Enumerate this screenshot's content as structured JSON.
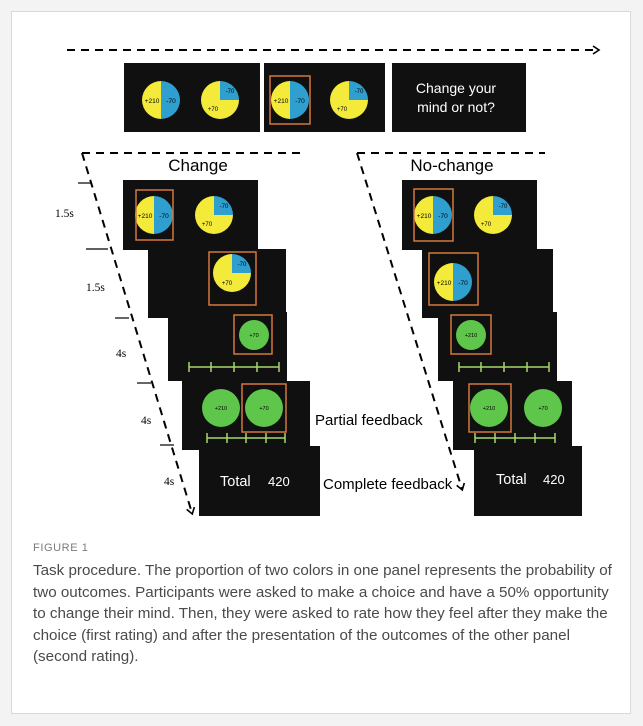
{
  "figure": {
    "top_row": {
      "panel_a": {
        "left_value": "+210",
        "right_value": "-70",
        "second_small": "-70",
        "second_large": "+70"
      },
      "panel_b": {
        "left_value": "+210",
        "right_value": "-70",
        "second_small": "-70",
        "second_large": "+70"
      },
      "prompt_line1": "Change your",
      "prompt_line2": "mind or not?"
    },
    "change": {
      "title": "Change",
      "times": [
        "1.5s",
        "1.5s",
        "4s",
        "4s",
        "4s"
      ],
      "s1": {
        "left_value": "+210",
        "right_value": "-70",
        "second_small": "-70",
        "second_large": "+70"
      },
      "s2": {
        "second_small": "-70",
        "second_large": "+70"
      },
      "s3": {
        "outcome": "+70"
      },
      "s4": {
        "left_outcome": "+210",
        "right_outcome": "+70"
      },
      "partial_label": "Partial feedback",
      "s5": {
        "total_label": "Total",
        "total_value": "420"
      },
      "complete_label": "Complete feedback"
    },
    "nochange": {
      "title": "No-change",
      "s1": {
        "left_value": "+210",
        "right_value": "-70",
        "second_small": "-70",
        "second_large": "+70"
      },
      "s2": {
        "left_value": "+210",
        "right_value": "-70"
      },
      "s3": {
        "outcome": "+210"
      },
      "s4": {
        "left_outcome": "+210",
        "right_outcome": "+70"
      },
      "s5": {
        "total_label": "Total",
        "total_value": "420"
      }
    },
    "colors": {
      "yellow": "#f4ea3a",
      "blue": "#2f9fd0",
      "green": "#5ec64a",
      "orange": "#d2783c",
      "screen": "#101010",
      "scale": "#a6d86b"
    }
  },
  "caption": {
    "label": "FIGURE 1",
    "text": "Task procedure. The proportion of two colors in one panel represents the probability of two outcomes. Participants were asked to make a choice and have a 50% opportunity to change their mind. Then, they were asked to rate how they feel after they make the choice (first rating) and after the presentation of the outcomes of the other panel (second rating)."
  }
}
